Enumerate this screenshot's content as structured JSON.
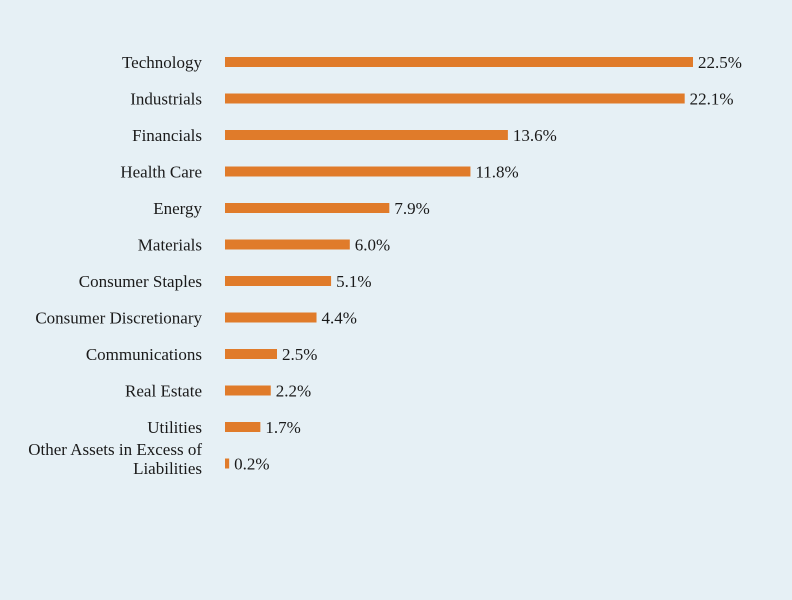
{
  "colors": {
    "background": "#e6f0f5",
    "bar": "#e07b2a",
    "text": "#1a1a1a"
  },
  "chart_data": {
    "type": "bar",
    "orientation": "horizontal",
    "title": "",
    "xlabel": "",
    "ylabel": "",
    "grid": false,
    "categories": [
      "Technology",
      "Industrials",
      "Financials",
      "Health Care",
      "Energy",
      "Materials",
      "Consumer Staples",
      "Consumer Discretionary",
      "Communications",
      "Real Estate",
      "Utilities",
      [
        "Other Assets in Excess of",
        "Liabilities"
      ]
    ],
    "values": [
      22.5,
      22.1,
      13.6,
      11.8,
      7.9,
      6.0,
      5.1,
      4.4,
      2.5,
      2.2,
      1.7,
      0.2
    ],
    "data_labels": [
      "22.5%",
      "22.1%",
      "13.6%",
      "11.8%",
      "7.9%",
      "6.0%",
      "5.1%",
      "4.4%",
      "2.5%",
      "2.2%",
      "1.7%",
      "0.2%"
    ],
    "xlim": [
      0,
      22.5
    ]
  }
}
